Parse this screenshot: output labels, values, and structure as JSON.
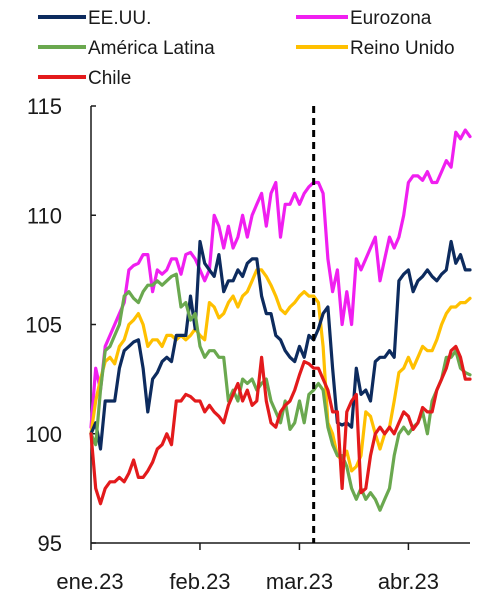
{
  "chart_data": {
    "type": "line",
    "ylim": [
      95,
      115
    ],
    "y_ticks": [
      95,
      100,
      105,
      110,
      115
    ],
    "x_range": [
      0,
      80
    ],
    "x_ticks": [
      {
        "x": 0,
        "label": ""
      },
      {
        "x": 23,
        "label": "feb.23"
      },
      {
        "x": 44,
        "label": "mar.23"
      },
      {
        "x": 67,
        "label": "abr.23"
      }
    ],
    "x_first_label": "ene.23",
    "vline_x": 47,
    "legend": [
      {
        "name": "EE.UU.",
        "color": "#0d2b5e"
      },
      {
        "name": "Eurozona",
        "color": "#f01ff0"
      },
      {
        "name": "América Latina",
        "color": "#6aa84f"
      },
      {
        "name": "Reino Unido",
        "color": "#ffc000"
      },
      {
        "name": "Chile",
        "color": "#e31a1c"
      }
    ],
    "series": [
      {
        "name": "Eurozona",
        "color": "#f01ff0",
        "x": [
          0,
          1,
          2,
          3,
          4,
          5,
          6,
          7,
          8,
          9,
          10,
          11,
          12,
          13,
          14,
          15,
          16,
          17,
          18,
          19,
          20,
          21,
          22,
          23,
          24,
          25,
          26,
          27,
          28,
          29,
          30,
          31,
          32,
          33,
          34,
          35,
          36,
          37,
          38,
          39,
          40,
          41,
          42,
          43,
          44,
          45,
          46,
          47,
          48,
          49,
          50,
          51,
          52,
          53,
          54,
          55,
          56,
          57,
          58,
          59,
          60,
          61,
          62,
          63,
          64,
          65,
          66,
          67,
          68,
          69,
          70,
          71,
          72,
          73,
          74,
          75,
          76,
          77,
          78,
          79,
          80
        ],
        "values": [
          100.3,
          103,
          102,
          104,
          104.5,
          105,
          105.5,
          106,
          107.5,
          107.7,
          107.8,
          108.2,
          108.2,
          106.5,
          107.5,
          107.3,
          107.5,
          108,
          108,
          107.3,
          108.2,
          108.3,
          108,
          107.5,
          107,
          107.5,
          110,
          109.5,
          108.5,
          109.5,
          108.5,
          109,
          110,
          109,
          110,
          110.5,
          111,
          109.5,
          111,
          111.5,
          109,
          110.5,
          110.5,
          111,
          110.5,
          111,
          111.3,
          111.5,
          111.5,
          111,
          108,
          106.5,
          107.5,
          105,
          106.5,
          105,
          108,
          107.5,
          108,
          108.5,
          109,
          107,
          108,
          109,
          108.5,
          109,
          110,
          111.5,
          111.8,
          111.8,
          111.6,
          112,
          111.5,
          111.5,
          112,
          112.5,
          112.2,
          113.8,
          113.5,
          113.9,
          113.6
        ]
      },
      {
        "name": "Reino Unido",
        "color": "#ffc000",
        "x": [
          0,
          1,
          2,
          3,
          4,
          5,
          6,
          7,
          8,
          9,
          10,
          11,
          12,
          13,
          14,
          15,
          16,
          17,
          18,
          19,
          20,
          21,
          22,
          23,
          24,
          25,
          26,
          27,
          28,
          29,
          30,
          31,
          32,
          33,
          34,
          35,
          36,
          37,
          38,
          39,
          40,
          41,
          42,
          43,
          44,
          45,
          46,
          47,
          48,
          49,
          50,
          51,
          52,
          53,
          54,
          55,
          56,
          57,
          58,
          59,
          60,
          61,
          62,
          63,
          64,
          65,
          66,
          67,
          68,
          69,
          70,
          71,
          72,
          73,
          74,
          75,
          76,
          77,
          78,
          79,
          80
        ],
        "values": [
          100,
          101.5,
          102.5,
          103.3,
          103.5,
          103.2,
          104,
          104.3,
          105,
          105.2,
          105.5,
          105,
          104,
          104.3,
          104.3,
          104,
          104.5,
          104.5,
          104.3,
          104.5,
          104.3,
          104.5,
          104.8,
          104.5,
          104.3,
          106,
          105.8,
          105.3,
          105.5,
          106,
          106.3,
          105.8,
          106.3,
          106.5,
          107,
          107.5,
          107.5,
          107.2,
          106.8,
          106.3,
          105.7,
          105.5,
          105.8,
          106,
          106.3,
          106.5,
          106.3,
          106.3,
          106,
          104,
          100.5,
          100,
          99,
          98.8,
          99.2,
          98.3,
          98.5,
          99,
          101,
          100.8,
          100,
          99.3,
          100,
          100.3,
          101.5,
          102.8,
          103,
          103.5,
          103,
          103.5,
          104,
          103.8,
          103.8,
          104.3,
          105,
          105.5,
          105.8,
          105.8,
          106,
          106,
          106.2
        ]
      },
      {
        "name": "EE.UU.",
        "color": "#0d2b5e",
        "x": [
          0,
          1,
          2,
          3,
          4,
          5,
          6,
          7,
          8,
          9,
          10,
          11,
          12,
          13,
          14,
          15,
          16,
          17,
          18,
          19,
          20,
          21,
          22,
          23,
          24,
          25,
          26,
          27,
          28,
          29,
          30,
          31,
          32,
          33,
          34,
          35,
          36,
          37,
          38,
          39,
          40,
          41,
          42,
          43,
          44,
          45,
          46,
          47,
          48,
          49,
          50,
          51,
          52,
          53,
          54,
          55,
          56,
          57,
          58,
          59,
          60,
          61,
          62,
          63,
          64,
          65,
          66,
          67,
          68,
          69,
          70,
          71,
          72,
          73,
          74,
          75,
          76,
          77,
          78,
          79,
          80
        ],
        "values": [
          100,
          100.5,
          99.3,
          101.5,
          101.5,
          101.5,
          103,
          103.8,
          104,
          104.2,
          104.3,
          103,
          101,
          102.5,
          102.8,
          103.3,
          103.5,
          103.3,
          104.5,
          104.5,
          104.5,
          106.3,
          104.8,
          108.8,
          107.8,
          107.5,
          107.2,
          108.2,
          106.5,
          107,
          107,
          107.5,
          107.2,
          107.8,
          108,
          108,
          106.3,
          105.5,
          105.5,
          104.5,
          104.3,
          103.8,
          103.5,
          103.3,
          104,
          103.5,
          104.5,
          104.3,
          104.8,
          105.5,
          105.8,
          103,
          100.5,
          100.4,
          100.5,
          100.3,
          103,
          101.8,
          102,
          101.5,
          103.3,
          103.5,
          103.5,
          103.8,
          103.5,
          107,
          107.3,
          107.5,
          106.5,
          107,
          107.2,
          107.5,
          107.2,
          107,
          107.3,
          107.5,
          108.8,
          107.8,
          108.2,
          107.5,
          107.5
        ]
      },
      {
        "name": "América Latina",
        "color": "#6aa84f",
        "x": [
          0,
          1,
          2,
          3,
          4,
          5,
          6,
          7,
          8,
          9,
          10,
          11,
          12,
          13,
          14,
          15,
          16,
          17,
          18,
          19,
          20,
          21,
          22,
          23,
          24,
          25,
          26,
          27,
          28,
          29,
          30,
          31,
          32,
          33,
          34,
          35,
          36,
          37,
          38,
          39,
          40,
          41,
          42,
          43,
          44,
          45,
          46,
          47,
          48,
          49,
          50,
          51,
          52,
          53,
          54,
          55,
          56,
          57,
          58,
          59,
          60,
          61,
          62,
          63,
          64,
          65,
          66,
          67,
          68,
          69,
          70,
          71,
          72,
          73,
          74,
          75,
          76,
          77,
          78,
          79,
          80
        ],
        "values": [
          100,
          99.5,
          102,
          103.8,
          104,
          104.5,
          105,
          106.3,
          106.5,
          106.2,
          106,
          106.5,
          106.8,
          106.8,
          107,
          106.8,
          107,
          107.2,
          107.3,
          105.8,
          106,
          105.2,
          105.5,
          104,
          103.5,
          103.8,
          103.8,
          103.5,
          103.5,
          101.5,
          102,
          101.5,
          102.5,
          102.3,
          102.5,
          102,
          102.3,
          102.5,
          101.5,
          101,
          100.5,
          101.5,
          100.2,
          100.5,
          101.5,
          100.5,
          101.8,
          102,
          102.3,
          102,
          100.3,
          99.5,
          99,
          99,
          98.5,
          97.5,
          97,
          97.5,
          97,
          97.3,
          97,
          96.5,
          97,
          97.5,
          99,
          100,
          100.3,
          100,
          100.3,
          100.5,
          101,
          100,
          101.5,
          102,
          102.5,
          103.5,
          103.5,
          103.8,
          103,
          102.8,
          102.7
        ]
      },
      {
        "name": "Chile",
        "color": "#e31a1c",
        "x": [
          0,
          1,
          2,
          3,
          4,
          5,
          6,
          7,
          8,
          9,
          10,
          11,
          12,
          13,
          14,
          15,
          16,
          17,
          18,
          19,
          20,
          21,
          22,
          23,
          24,
          25,
          26,
          27,
          28,
          29,
          30,
          31,
          32,
          33,
          34,
          35,
          36,
          37,
          38,
          39,
          40,
          41,
          42,
          43,
          44,
          45,
          46,
          47,
          48,
          49,
          50,
          51,
          52,
          53,
          54,
          55,
          56,
          57,
          58,
          59,
          60,
          61,
          62,
          63,
          64,
          65,
          66,
          67,
          68,
          69,
          70,
          71,
          72,
          73,
          74,
          75,
          76,
          77,
          78,
          79,
          80
        ],
        "values": [
          100,
          97.5,
          96.8,
          97.5,
          97.8,
          97.8,
          98,
          97.8,
          98.2,
          98.8,
          98,
          98,
          98.3,
          98.7,
          99.3,
          99.5,
          100,
          99.5,
          101.5,
          101.5,
          101.8,
          101.7,
          101.5,
          101.5,
          101,
          101.3,
          101,
          100.8,
          100.5,
          101.3,
          101.8,
          102.3,
          101.5,
          102,
          101.3,
          101.5,
          103.5,
          101.5,
          100.5,
          100.3,
          101,
          101.3,
          101.5,
          102,
          102.7,
          103.3,
          103.2,
          103,
          103,
          102.5,
          102,
          101,
          101,
          97.5,
          101,
          101.5,
          101.8,
          97.3,
          97.5,
          99,
          100,
          100.3,
          100,
          100.3,
          100,
          100.5,
          101,
          100.8,
          100.2,
          100.5,
          101.2,
          101,
          101,
          102,
          102.5,
          103,
          103.8,
          104,
          103.5,
          102.5,
          102.5
        ]
      }
    ]
  }
}
